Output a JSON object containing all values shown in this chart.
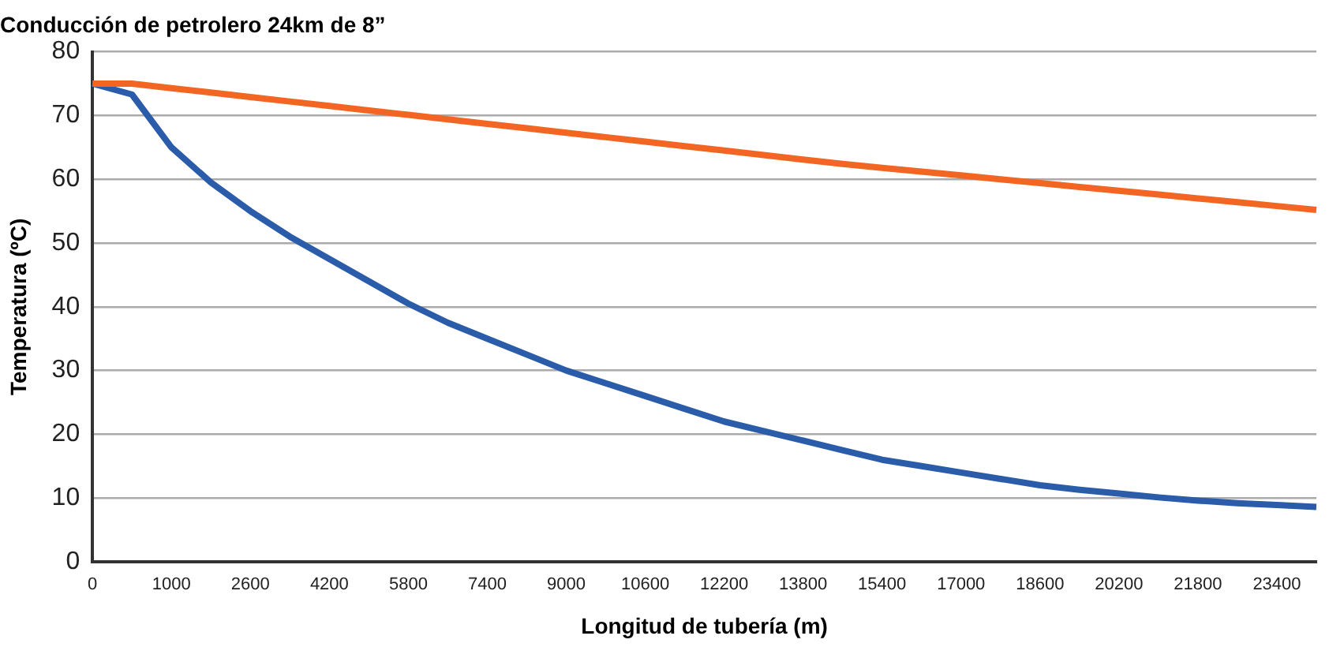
{
  "chart_data": {
    "type": "line",
    "title": "Conducción de petrolero 24km de 8”",
    "xlabel": "Longitud de tubería (m)",
    "ylabel": "Temperatura (ºC)",
    "categories": [
      "0",
      null,
      "1000",
      null,
      "2600",
      null,
      "4200",
      null,
      "5800",
      null,
      "7400",
      null,
      "9000",
      null,
      "10600",
      null,
      "12200",
      null,
      "13800",
      null,
      "15400",
      null,
      "17000",
      null,
      "18600",
      null,
      "20200",
      null,
      "21800",
      null,
      "23400",
      null
    ],
    "series": [
      {
        "color": "#f26522",
        "values": [
          75,
          75,
          74.3,
          73.6,
          72.9,
          72.2,
          71.5,
          70.8,
          70.1,
          69.4,
          68.7,
          68.0,
          67.3,
          66.6,
          65.9,
          65.2,
          64.5,
          63.8,
          63.1,
          62.4,
          61.8,
          61.2,
          60.6,
          60.0,
          59.4,
          58.8,
          58.2,
          57.6,
          57.0,
          56.4,
          55.8,
          55.2
        ]
      },
      {
        "color": "#2a5caa",
        "values": [
          75,
          73.3,
          65,
          59.5,
          55,
          51,
          47.5,
          44,
          40.5,
          37.5,
          35,
          32.5,
          30,
          28,
          26,
          24,
          22,
          20.5,
          19,
          17.5,
          16,
          15,
          14,
          13,
          12,
          11.3,
          10.7,
          10.1,
          9.6,
          9.2,
          8.9,
          8.6
        ]
      }
    ],
    "ylim": [
      0,
      80
    ],
    "yticks": [
      0,
      10,
      20,
      30,
      40,
      50,
      60,
      70,
      80
    ],
    "grid": "y",
    "legend": false,
    "marker": "none",
    "line_style": "solid"
  }
}
